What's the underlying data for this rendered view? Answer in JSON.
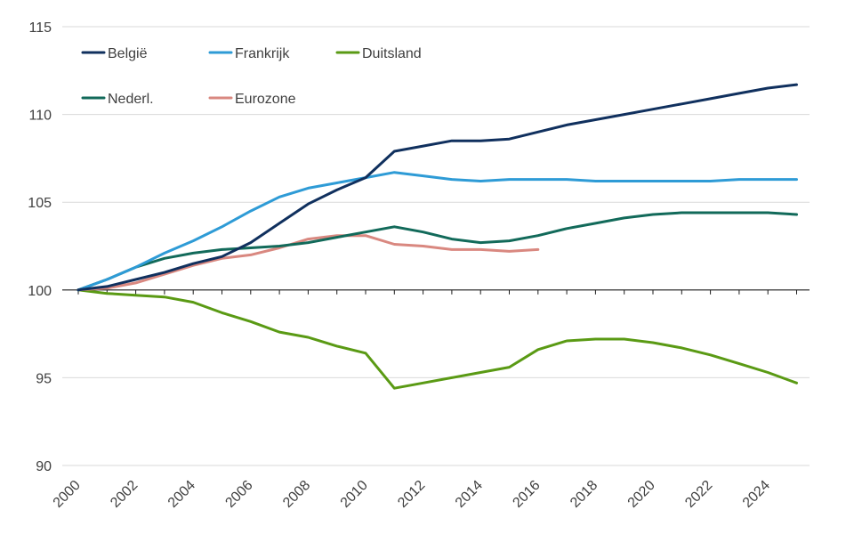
{
  "chart_data": {
    "type": "line",
    "x": [
      2000,
      2001,
      2002,
      2003,
      2004,
      2005,
      2006,
      2007,
      2008,
      2009,
      2010,
      2011,
      2012,
      2013,
      2014,
      2015,
      2016,
      2017,
      2018,
      2019,
      2020,
      2021,
      2022,
      2023,
      2024,
      2025
    ],
    "x_tick_labels": [
      "2000",
      "2002",
      "2004",
      "2006",
      "2008",
      "2010",
      "2012",
      "2014",
      "2016",
      "2018",
      "2020",
      "2022",
      "2024"
    ],
    "y_tick_labels": [
      "90",
      "95",
      "100",
      "105",
      "110",
      "115"
    ],
    "xlim": [
      2000,
      2025
    ],
    "ylim": [
      90,
      115
    ],
    "y_ticks": [
      90,
      95,
      100,
      105,
      110,
      115
    ],
    "baseline": 100,
    "grid": "horizontal",
    "legend_position": "top-left",
    "series": [
      {
        "name": "België",
        "color": "#10305e",
        "values": [
          100,
          100.2,
          100.6,
          101.0,
          101.5,
          101.9,
          102.7,
          103.8,
          104.9,
          105.7,
          106.4,
          107.9,
          108.2,
          108.5,
          108.5,
          108.6,
          109.0,
          109.4,
          109.7,
          110.0,
          110.3,
          110.6,
          110.9,
          111.2,
          111.5,
          111.7
        ]
      },
      {
        "name": "Frankrijk",
        "color": "#2e9bd6",
        "values": [
          100,
          100.6,
          101.3,
          102.1,
          102.8,
          103.6,
          104.5,
          105.3,
          105.8,
          106.1,
          106.4,
          106.7,
          106.5,
          106.3,
          106.2,
          106.3,
          106.3,
          106.3,
          106.2,
          106.2,
          106.2,
          106.2,
          106.2,
          106.3,
          106.3,
          106.3
        ]
      },
      {
        "name": "Duitsland",
        "color": "#5a9a14",
        "values": [
          100,
          99.8,
          99.7,
          99.6,
          99.3,
          98.7,
          98.2,
          97.6,
          97.3,
          96.8,
          96.4,
          94.4,
          94.7,
          95.0,
          95.3,
          95.6,
          96.6,
          97.1,
          97.2,
          97.2,
          97.0,
          96.7,
          96.3,
          95.8,
          95.3,
          94.7
        ]
      },
      {
        "name": "Nederl.",
        "color": "#126a5a",
        "values": [
          100,
          100.6,
          101.3,
          101.8,
          102.1,
          102.3,
          102.4,
          102.5,
          102.7,
          103.0,
          103.3,
          103.6,
          103.3,
          102.9,
          102.7,
          102.8,
          103.1,
          103.5,
          103.8,
          104.1,
          104.3,
          104.4,
          104.4,
          104.4,
          104.4,
          104.3
        ]
      },
      {
        "name": "Eurozone",
        "color": "#d98880",
        "values": [
          100,
          100.1,
          100.4,
          100.9,
          101.4,
          101.8,
          102.0,
          102.4,
          102.9,
          103.1,
          103.1,
          102.6,
          102.5,
          102.3,
          102.3,
          102.2,
          102.3,
          null,
          null,
          null,
          null,
          null,
          null,
          null,
          null,
          null
        ]
      }
    ],
    "legend_order": [
      0,
      1,
      2,
      3,
      4
    ]
  }
}
